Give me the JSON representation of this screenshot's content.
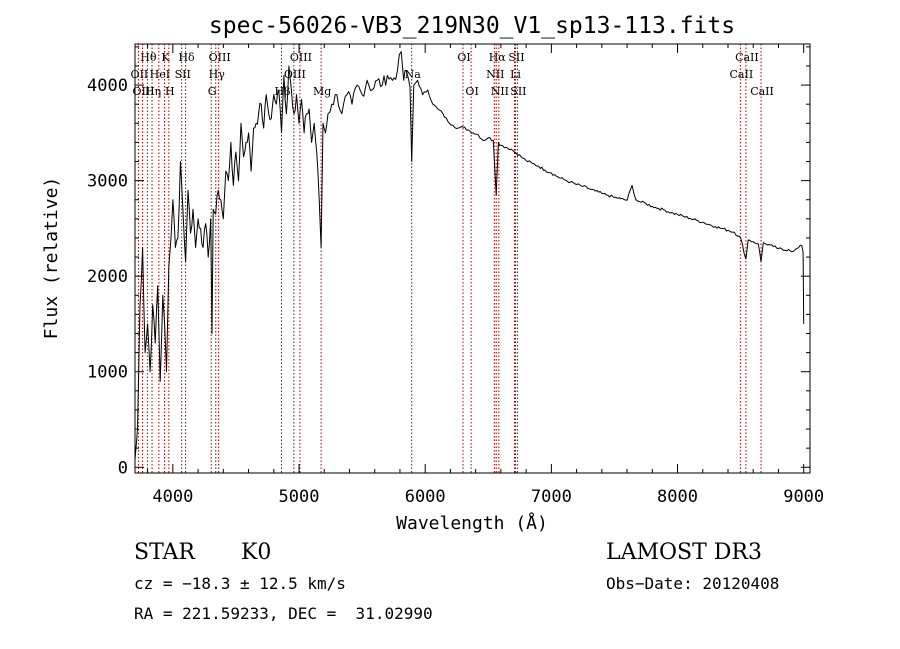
{
  "chart_data": {
    "type": "line",
    "title": "spec-56026-VB3_219N30_V1_sp13-113.fits",
    "xlabel": "Wavelength (Å)",
    "ylabel": "Flux (relative)",
    "xlim": [
      3700,
      9050
    ],
    "ylim": [
      -60,
      4430
    ],
    "xticks": [
      4000,
      5000,
      6000,
      7000,
      8000,
      9000
    ],
    "xtick_labels": [
      "4000",
      "5000",
      "6000",
      "7000",
      "8000",
      "9000"
    ],
    "yticks": [
      0,
      1000,
      2000,
      3000,
      4000
    ],
    "ytick_labels": [
      "0",
      "1000",
      "2000",
      "3000",
      "4000"
    ],
    "series": [
      {
        "name": "flux",
        "color": "#000000",
        "x": [
          3700,
          3720,
          3740,
          3760,
          3780,
          3800,
          3820,
          3840,
          3860,
          3880,
          3900,
          3920,
          3935,
          3950,
          3968,
          3985,
          4000,
          4020,
          4040,
          4060,
          4080,
          4101,
          4120,
          4140,
          4160,
          4180,
          4200,
          4220,
          4240,
          4260,
          4280,
          4300,
          4310,
          4320,
          4340,
          4360,
          4380,
          4400,
          4420,
          4440,
          4460,
          4480,
          4500,
          4520,
          4540,
          4560,
          4580,
          4600,
          4620,
          4640,
          4660,
          4680,
          4700,
          4720,
          4740,
          4760,
          4780,
          4800,
          4820,
          4840,
          4861,
          4880,
          4900,
          4920,
          4940,
          4960,
          4980,
          5000,
          5020,
          5040,
          5060,
          5080,
          5100,
          5120,
          5140,
          5160,
          5175,
          5190,
          5210,
          5230,
          5260,
          5300,
          5340,
          5380,
          5420,
          5460,
          5500,
          5540,
          5580,
          5620,
          5660,
          5700,
          5740,
          5780,
          5810,
          5830,
          5850,
          5880,
          5893,
          5910,
          5940,
          5980,
          6020,
          6060,
          6100,
          6140,
          6180,
          6220,
          6260,
          6300,
          6340,
          6380,
          6420,
          6460,
          6500,
          6540,
          6563,
          6580,
          6600,
          6640,
          6680,
          6720,
          6760,
          6800,
          6850,
          6900,
          6950,
          7000,
          7050,
          7100,
          7150,
          7200,
          7250,
          7300,
          7350,
          7400,
          7450,
          7500,
          7550,
          7600,
          7640,
          7670,
          7700,
          7750,
          7800,
          7850,
          7900,
          7950,
          8000,
          8050,
          8100,
          8150,
          8200,
          8250,
          8300,
          8350,
          8400,
          8450,
          8500,
          8542,
          8560,
          8600,
          8640,
          8662,
          8680,
          8720,
          8760,
          8800,
          8840,
          8880,
          8920,
          8960,
          8985,
          8995,
          9000
        ],
        "values": [
          80,
          400,
          1700,
          2300,
          1200,
          1500,
          1000,
          1700,
          1300,
          1900,
          900,
          1800,
          1500,
          1000,
          2100,
          2400,
          2800,
          2300,
          2400,
          3200,
          2700,
          2150,
          2900,
          2450,
          2700,
          2300,
          2600,
          2500,
          2300,
          2550,
          2200,
          2600,
          1400,
          2700,
          2650,
          2900,
          2800,
          2600,
          3100,
          3000,
          3400,
          2950,
          3300,
          3000,
          3600,
          3250,
          3400,
          3500,
          3100,
          3550,
          3600,
          3700,
          3800,
          3550,
          3900,
          3700,
          3650,
          3900,
          3800,
          3950,
          3500,
          4100,
          3700,
          4200,
          3950,
          3700,
          3900,
          3600,
          3850,
          3500,
          3700,
          3750,
          3400,
          3600,
          3300,
          2800,
          2300,
          3600,
          3500,
          3700,
          3800,
          3900,
          3700,
          3900,
          3800,
          4000,
          3900,
          4050,
          3950,
          4050,
          4000,
          4100,
          4050,
          4150,
          4350,
          4050,
          4150,
          3980,
          3200,
          4000,
          4050,
          3900,
          3950,
          3800,
          3750,
          3700,
          3620,
          3580,
          3550,
          3560,
          3530,
          3500,
          3480,
          3420,
          3450,
          3420,
          2850,
          3400,
          3370,
          3350,
          3330,
          3290,
          3250,
          3210,
          3180,
          3150,
          3110,
          3080,
          3040,
          3010,
          2985,
          2960,
          2940,
          2915,
          2890,
          2865,
          2845,
          2825,
          2810,
          2795,
          2950,
          2800,
          2780,
          2760,
          2730,
          2710,
          2690,
          2665,
          2645,
          2625,
          2605,
          2585,
          2565,
          2540,
          2520,
          2500,
          2480,
          2460,
          2400,
          2180,
          2380,
          2360,
          2340,
          2150,
          2350,
          2330,
          2310,
          2290,
          2270,
          2280,
          2260,
          2300,
          2320,
          2250,
          1500
        ]
      }
    ],
    "lines": [
      {
        "label": "Hθ",
        "x": 3798,
        "row": 0,
        "color": "#a00000"
      },
      {
        "label": "OII",
        "x": 3727,
        "row": 1,
        "color": "#a00000"
      },
      {
        "label": "OIII",
        "x": 3760,
        "row": 2,
        "color": "#a00000"
      },
      {
        "label": "Hη",
        "x": 3835,
        "row": 2,
        "color": "#a00000"
      },
      {
        "label": "K",
        "x": 3934,
        "row": 0,
        "color": "#a00000"
      },
      {
        "label": "HeI",
        "x": 3889,
        "row": 1,
        "color": "#a00000"
      },
      {
        "label": "H",
        "x": 3968,
        "row": 2,
        "color": "#a00000"
      },
      {
        "label": "Hδ",
        "x": 4101,
        "row": 0,
        "color": "#a00000"
      },
      {
        "label": "SII",
        "x": 4070,
        "row": 1,
        "color": "#a00000"
      },
      {
        "label": "OIII",
        "x": 4363,
        "row": 0,
        "color": "#a00000"
      },
      {
        "label": "Hγ",
        "x": 4340,
        "row": 1,
        "color": "#a00000"
      },
      {
        "label": "G",
        "x": 4304,
        "row": 2,
        "color": "#a00000"
      },
      {
        "label": "OIII",
        "x": 5007,
        "row": 0,
        "color": "#a00000"
      },
      {
        "label": "OIII",
        "x": 4959,
        "row": 1,
        "color": "#a00000"
      },
      {
        "label": "Hβ",
        "x": 4861,
        "row": 2,
        "color": "#a00000"
      },
      {
        "label": "Mg",
        "x": 5175,
        "row": 2,
        "color": "#a00000"
      },
      {
        "label": "Na",
        "x": 5893,
        "row": 1,
        "color": "#a00000"
      },
      {
        "label": "OI",
        "x": 6300,
        "row": 0,
        "color": "#a00000"
      },
      {
        "label": "OI",
        "x": 6364,
        "row": 2,
        "color": "#a00000"
      },
      {
        "label": "Hα",
        "x": 6563,
        "row": 0,
        "color": "#a00000"
      },
      {
        "label": "SII",
        "x": 6716,
        "row": 0,
        "color": "#a00000"
      },
      {
        "label": "NII",
        "x": 6548,
        "row": 1,
        "color": "#a00000"
      },
      {
        "label": "Li",
        "x": 6708,
        "row": 1,
        "color": "#a00000"
      },
      {
        "label": "NII",
        "x": 6584,
        "row": 2,
        "color": "#a00000"
      },
      {
        "label": "SII",
        "x": 6731,
        "row": 2,
        "color": "#a00000"
      },
      {
        "label": "CaII",
        "x": 8542,
        "row": 0,
        "color": "#a00000"
      },
      {
        "label": "CaII",
        "x": 8498,
        "row": 1,
        "color": "#a00000"
      },
      {
        "label": "CaII",
        "x": 8662,
        "row": 2,
        "color": "#a00000"
      }
    ]
  },
  "info": {
    "object_class": "STAR",
    "subclass": "K0",
    "survey": "LAMOST DR3",
    "redshift_text": "cz = −18.3 ± 12.5 km/s",
    "obs_date_text": "Obs−Date: 20120408",
    "coords_text": "RA = 221.59233, DEC =  31.02990"
  }
}
